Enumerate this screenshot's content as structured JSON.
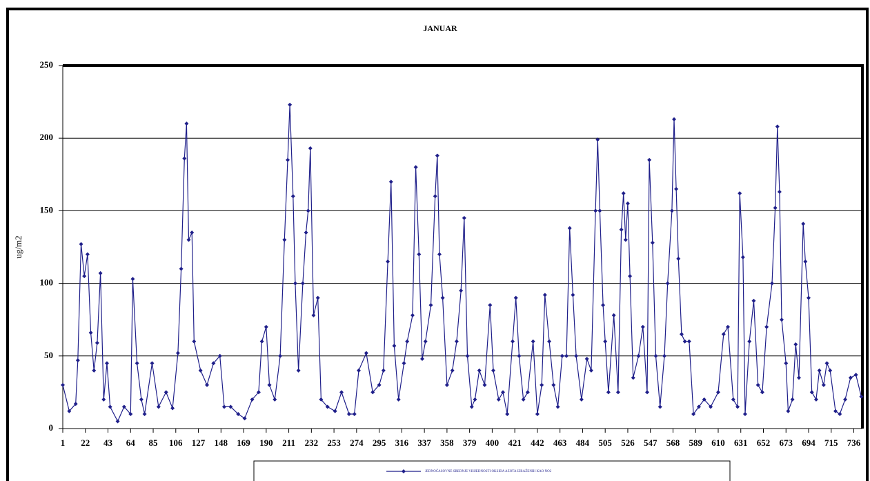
{
  "chart_data": {
    "type": "line",
    "title": "JANUAR",
    "y_label": "ug/m2",
    "x": [
      1,
      7,
      13,
      15,
      18,
      21,
      24,
      27,
      30,
      33,
      36,
      39,
      42,
      45,
      52,
      58,
      64,
      66,
      70,
      74,
      77,
      84,
      90,
      97,
      103,
      108,
      111,
      114,
      116,
      118,
      121,
      123,
      129,
      135,
      141,
      147,
      151,
      157,
      164,
      170,
      177,
      183,
      186,
      190,
      193,
      198,
      203,
      207,
      210,
      212,
      215,
      217,
      220,
      224,
      227,
      229,
      231,
      234,
      238,
      241,
      247,
      254,
      260,
      267,
      272,
      276,
      283,
      289,
      295,
      299,
      303,
      306,
      309,
      313,
      318,
      321,
      326,
      329,
      332,
      335,
      338,
      343,
      347,
      349,
      351,
      354,
      358,
      363,
      367,
      371,
      374,
      377,
      381,
      384,
      388,
      393,
      398,
      401,
      406,
      410,
      414,
      419,
      422,
      425,
      429,
      433,
      438,
      442,
      446,
      449,
      453,
      457,
      461,
      465,
      469,
      472,
      475,
      478,
      483,
      488,
      492,
      496,
      498,
      500,
      503,
      505,
      508,
      513,
      517,
      520,
      522,
      524,
      526,
      528,
      531,
      536,
      540,
      544,
      546,
      549,
      552,
      556,
      560,
      563,
      567,
      569,
      571,
      573,
      576,
      579,
      583,
      587,
      592,
      597,
      603,
      610,
      615,
      619,
      624,
      628,
      630,
      633,
      635,
      639,
      643,
      647,
      651,
      655,
      660,
      663,
      665,
      667,
      669,
      673,
      675,
      679,
      682,
      685,
      689,
      691,
      694,
      697,
      701,
      704,
      708,
      711,
      714,
      719,
      723,
      728,
      733,
      738,
      743
    ],
    "series": [
      {
        "name": "JEDNOČASOVNE SREDNJE VRIJEDNOSTI OKSIDA AZOTA IZRAŽENIH KAO NO2",
        "color": "#1f1f8a",
        "values": [
          30,
          12,
          17,
          47,
          127,
          105,
          120,
          66,
          40,
          59,
          107,
          20,
          45,
          15,
          5,
          15,
          10,
          103,
          45,
          20,
          10,
          45,
          15,
          25,
          14,
          52,
          110,
          186,
          210,
          130,
          135,
          60,
          40,
          30,
          45,
          50,
          15,
          15,
          10,
          7,
          20,
          25,
          60,
          70,
          30,
          20,
          50,
          130,
          185,
          223,
          160,
          100,
          40,
          100,
          135,
          150,
          193,
          78,
          90,
          20,
          15,
          12,
          25,
          10,
          10,
          40,
          52,
          25,
          30,
          40,
          115,
          170,
          57,
          20,
          45,
          60,
          78,
          180,
          120,
          48,
          60,
          85,
          160,
          188,
          120,
          90,
          30,
          40,
          60,
          95,
          145,
          50,
          15,
          20,
          40,
          30,
          85,
          40,
          20,
          25,
          10,
          60,
          90,
          50,
          20,
          25,
          60,
          10,
          30,
          92,
          60,
          30,
          15,
          50,
          50,
          138,
          92,
          50,
          20,
          48,
          40,
          150,
          199,
          150,
          85,
          60,
          25,
          78,
          25,
          137,
          162,
          130,
          155,
          105,
          35,
          50,
          70,
          25,
          185,
          128,
          50,
          15,
          50,
          100,
          150,
          213,
          165,
          117,
          65,
          60,
          60,
          10,
          15,
          20,
          15,
          25,
          65,
          70,
          20,
          15,
          162,
          118,
          10,
          60,
          88,
          30,
          25,
          70,
          100,
          152,
          208,
          163,
          75,
          45,
          12,
          20,
          58,
          35,
          141,
          115,
          90,
          25,
          20,
          40,
          30,
          45,
          40,
          12,
          10,
          20,
          35,
          37,
          22
        ]
      }
    ],
    "xlim": [
      1,
      744
    ],
    "xticks": [
      1,
      22,
      43,
      64,
      85,
      106,
      127,
      148,
      169,
      190,
      211,
      232,
      253,
      274,
      295,
      316,
      337,
      358,
      379,
      400,
      421,
      442,
      463,
      484,
      505,
      526,
      547,
      568,
      589,
      610,
      631,
      652,
      673,
      694,
      715,
      736
    ],
    "ylim": [
      0,
      250
    ],
    "yticks": [
      0,
      50,
      100,
      150,
      200,
      250
    ],
    "grid": true
  }
}
